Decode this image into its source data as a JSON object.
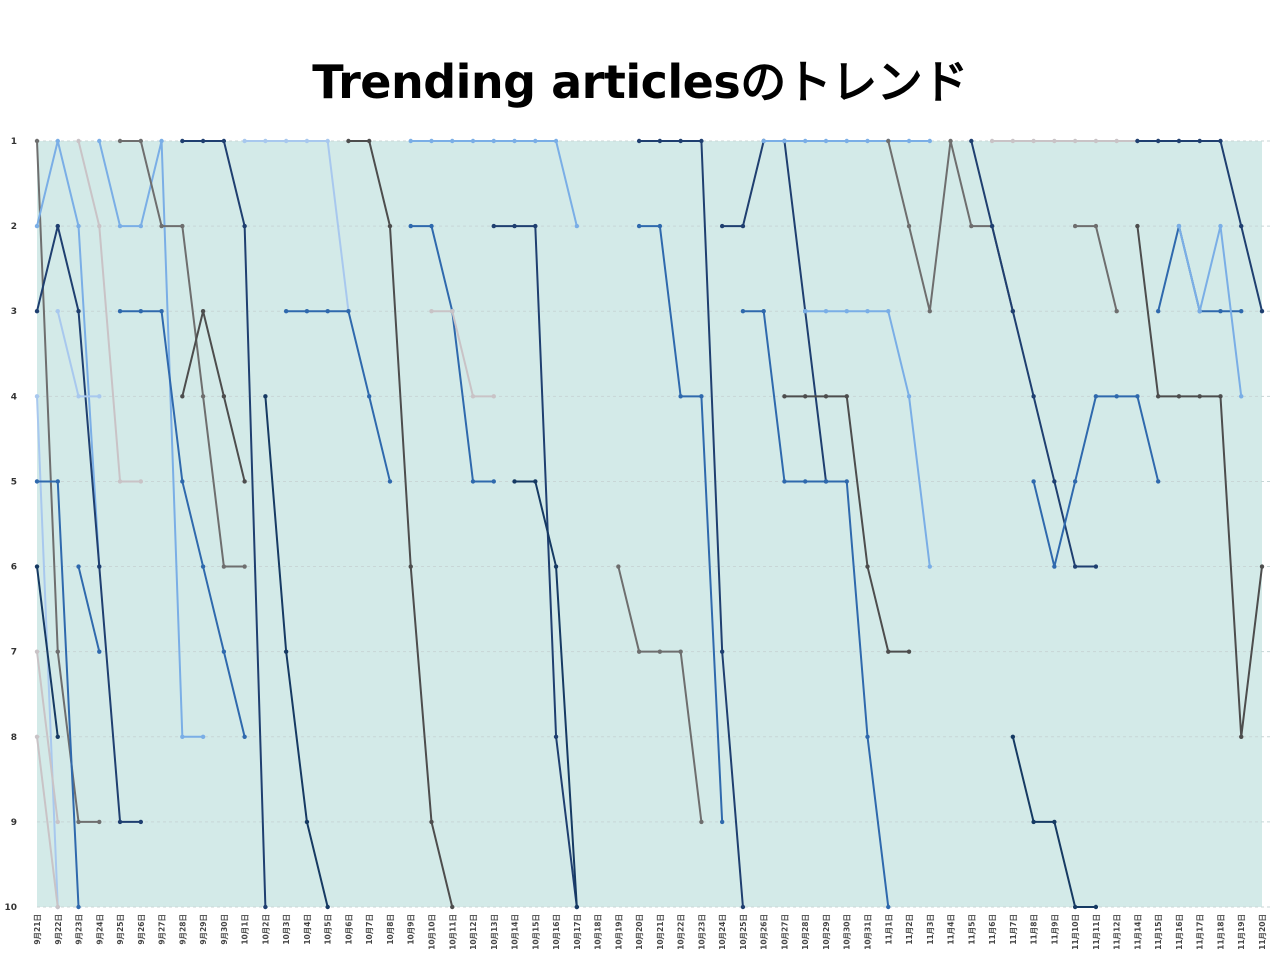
{
  "chart_data": {
    "type": "line",
    "title": "Trending articlesのトレンド",
    "xlabel": "",
    "ylabel": "",
    "y_inverted": true,
    "ylim": [
      1,
      10
    ],
    "yticks": [
      "1",
      "2",
      "3",
      "4",
      "5",
      "6",
      "7",
      "8",
      "9",
      "10"
    ],
    "grid": true,
    "legend": "none",
    "plot_background": "#d3eae8",
    "palette": [
      "#1f3f70",
      "#2f69ad",
      "#4a84c7",
      "#7aaee6",
      "#a8c8ee",
      "#9aa9bd",
      "#c9c3c6",
      "#6e6e6e",
      "#4d4d4d",
      "#163a63"
    ],
    "categories": [
      "9月21日",
      "9月22日",
      "9月23日",
      "9月24日",
      "9月25日",
      "9月26日",
      "9月27日",
      "9月28日",
      "9月29日",
      "9月30日",
      "10月1日",
      "10月2日",
      "10月3日",
      "10月4日",
      "10月5日",
      "10月6日",
      "10月7日",
      "10月8日",
      "10月9日",
      "10月10日",
      "10月11日",
      "10月12日",
      "10月13日",
      "10月14日",
      "10月15日",
      "10月16日",
      "10月17日",
      "10月18日",
      "10月19日",
      "10月20日",
      "10月21日",
      "10月22日",
      "10月23日",
      "10月24日",
      "10月25日",
      "10月26日",
      "10月27日",
      "10月28日",
      "10月29日",
      "10月30日",
      "10月31日",
      "11月1日",
      "11月2日",
      "11月3日",
      "11月4日",
      "11月5日",
      "11月6日",
      "11月7日",
      "11月8日",
      "11月9日",
      "11月10日",
      "11月11日",
      "11月12日",
      "11月14日",
      "11月15日",
      "11月16日",
      "11月17日",
      "11月18日",
      "11月19日",
      "11月20日"
    ],
    "series": [
      {
        "color": "#6e6e6e",
        "points": [
          [
            0,
            1
          ],
          [
            1,
            7
          ],
          [
            2,
            9
          ],
          [
            3,
            9
          ]
        ]
      },
      {
        "color": "#7aaee6",
        "points": [
          [
            0,
            2
          ],
          [
            1,
            1
          ],
          [
            2,
            2
          ],
          [
            3,
            6
          ]
        ]
      },
      {
        "color": "#1f3f70",
        "points": [
          [
            0,
            3
          ],
          [
            1,
            2
          ],
          [
            2,
            3
          ],
          [
            3,
            6
          ],
          [
            4,
            9
          ],
          [
            5,
            9
          ]
        ]
      },
      {
        "color": "#a8c8ee",
        "points": [
          [
            0,
            4
          ],
          [
            1,
            10
          ]
        ]
      },
      {
        "color": "#2f69ad",
        "points": [
          [
            0,
            5
          ],
          [
            1,
            5
          ],
          [
            2,
            10
          ]
        ]
      },
      {
        "color": "#163a63",
        "points": [
          [
            0,
            6
          ],
          [
            1,
            8
          ]
        ]
      },
      {
        "color": "#c9c3c6",
        "points": [
          [
            0,
            7
          ],
          [
            1,
            9
          ]
        ]
      },
      {
        "color": "#c9c3c6",
        "points": [
          [
            0,
            8
          ],
          [
            1,
            10
          ]
        ]
      },
      {
        "color": "#c9c3c6",
        "points": [
          [
            2,
            1
          ],
          [
            3,
            2
          ],
          [
            4,
            5
          ],
          [
            5,
            5
          ]
        ]
      },
      {
        "color": "#7aaee6",
        "points": [
          [
            3,
            1
          ],
          [
            4,
            2
          ],
          [
            5,
            2
          ],
          [
            6,
            1
          ],
          [
            7,
            8
          ],
          [
            8,
            8
          ]
        ]
      },
      {
        "color": "#a8c8ee",
        "points": [
          [
            1,
            3
          ],
          [
            2,
            4
          ],
          [
            3,
            4
          ]
        ]
      },
      {
        "color": "#2f69ad",
        "points": [
          [
            2,
            6
          ],
          [
            3,
            7
          ]
        ]
      },
      {
        "color": "#6e6e6e",
        "points": [
          [
            4,
            1
          ],
          [
            5,
            1
          ],
          [
            6,
            2
          ],
          [
            7,
            2
          ],
          [
            8,
            4
          ],
          [
            9,
            6
          ],
          [
            10,
            6
          ]
        ]
      },
      {
        "color": "#2f69ad",
        "points": [
          [
            4,
            3
          ],
          [
            5,
            3
          ],
          [
            6,
            3
          ],
          [
            7,
            5
          ],
          [
            8,
            6
          ],
          [
            9,
            7
          ],
          [
            10,
            8
          ]
        ]
      },
      {
        "color": "#1f3f70",
        "points": [
          [
            7,
            1
          ],
          [
            8,
            1
          ],
          [
            9,
            1
          ],
          [
            10,
            2
          ],
          [
            11,
            10
          ]
        ]
      },
      {
        "color": "#4d4d4d",
        "points": [
          [
            7,
            4
          ],
          [
            8,
            3
          ],
          [
            9,
            4
          ],
          [
            10,
            5
          ]
        ]
      },
      {
        "color": "#a8c8ee",
        "points": [
          [
            10,
            1
          ],
          [
            11,
            1
          ],
          [
            12,
            1
          ],
          [
            13,
            1
          ],
          [
            14,
            1
          ],
          [
            15,
            3
          ]
        ]
      },
      {
        "color": "#163a63",
        "points": [
          [
            11,
            4
          ],
          [
            12,
            7
          ],
          [
            13,
            9
          ],
          [
            14,
            10
          ]
        ]
      },
      {
        "color": "#2f69ad",
        "points": [
          [
            12,
            3
          ],
          [
            13,
            3
          ],
          [
            14,
            3
          ],
          [
            15,
            3
          ],
          [
            16,
            4
          ],
          [
            17,
            5
          ]
        ]
      },
      {
        "color": "#4d4d4d",
        "points": [
          [
            15,
            1
          ],
          [
            16,
            1
          ],
          [
            17,
            2
          ],
          [
            18,
            6
          ],
          [
            19,
            9
          ],
          [
            20,
            10
          ]
        ]
      },
      {
        "color": "#7aaee6",
        "points": [
          [
            18,
            1
          ],
          [
            19,
            1
          ],
          [
            20,
            1
          ],
          [
            21,
            1
          ],
          [
            22,
            1
          ],
          [
            23,
            1
          ],
          [
            24,
            1
          ],
          [
            25,
            1
          ],
          [
            26,
            2
          ]
        ]
      },
      {
        "color": "#2f69ad",
        "points": [
          [
            18,
            2
          ],
          [
            19,
            2
          ],
          [
            20,
            3
          ],
          [
            21,
            5
          ],
          [
            22,
            5
          ]
        ]
      },
      {
        "color": "#1f3f70",
        "points": [
          [
            22,
            2
          ],
          [
            23,
            2
          ],
          [
            24,
            2
          ],
          [
            25,
            8
          ],
          [
            26,
            10
          ]
        ]
      },
      {
        "color": "#c9c3c6",
        "points": [
          [
            19,
            3
          ],
          [
            20,
            3
          ],
          [
            21,
            4
          ],
          [
            22,
            4
          ]
        ]
      },
      {
        "color": "#163a63",
        "points": [
          [
            23,
            5
          ],
          [
            24,
            5
          ],
          [
            25,
            6
          ],
          [
            26,
            10
          ]
        ]
      },
      {
        "color": "#1f3f70",
        "points": [
          [
            29,
            1
          ],
          [
            30,
            1
          ],
          [
            31,
            1
          ],
          [
            32,
            1
          ],
          [
            33,
            7
          ],
          [
            34,
            10
          ]
        ]
      },
      {
        "color": "#2f69ad",
        "points": [
          [
            29,
            2
          ],
          [
            30,
            2
          ],
          [
            31,
            4
          ],
          [
            32,
            4
          ],
          [
            33,
            9
          ]
        ]
      },
      {
        "color": "#6e6e6e",
        "points": [
          [
            28,
            6
          ],
          [
            29,
            7
          ],
          [
            30,
            7
          ],
          [
            31,
            7
          ],
          [
            32,
            9
          ]
        ]
      },
      {
        "color": "#1f3f70",
        "points": [
          [
            33,
            2
          ],
          [
            34,
            2
          ],
          [
            35,
            1
          ],
          [
            36,
            1
          ],
          [
            37,
            3
          ],
          [
            38,
            5
          ]
        ]
      },
      {
        "color": "#7aaee6",
        "points": [
          [
            35,
            1
          ],
          [
            36,
            1
          ],
          [
            37,
            1
          ],
          [
            38,
            1
          ],
          [
            39,
            1
          ],
          [
            40,
            1
          ],
          [
            41,
            1
          ],
          [
            42,
            1
          ],
          [
            43,
            1
          ]
        ]
      },
      {
        "color": "#2f69ad",
        "points": [
          [
            34,
            3
          ],
          [
            35,
            3
          ],
          [
            36,
            5
          ],
          [
            37,
            5
          ],
          [
            38,
            5
          ],
          [
            39,
            5
          ],
          [
            40,
            8
          ],
          [
            41,
            10
          ]
        ]
      },
      {
        "color": "#4d4d4d",
        "points": [
          [
            36,
            4
          ],
          [
            37,
            4
          ],
          [
            38,
            4
          ],
          [
            39,
            4
          ],
          [
            40,
            6
          ],
          [
            41,
            7
          ],
          [
            42,
            7
          ]
        ]
      },
      {
        "color": "#7aaee6",
        "points": [
          [
            37,
            3
          ],
          [
            38,
            3
          ],
          [
            39,
            3
          ],
          [
            40,
            3
          ],
          [
            41,
            3
          ],
          [
            42,
            4
          ],
          [
            43,
            6
          ]
        ]
      },
      {
        "color": "#6e6e6e",
        "points": [
          [
            41,
            1
          ],
          [
            42,
            2
          ],
          [
            43,
            3
          ],
          [
            44,
            1
          ],
          [
            45,
            2
          ],
          [
            46,
            2
          ],
          [
            47,
            3
          ]
        ]
      },
      {
        "color": "#1f3f70",
        "points": [
          [
            45,
            1
          ],
          [
            46,
            2
          ],
          [
            47,
            3
          ],
          [
            48,
            4
          ],
          [
            49,
            5
          ],
          [
            50,
            6
          ],
          [
            51,
            6
          ]
        ]
      },
      {
        "color": "#c9c3c6",
        "points": [
          [
            46,
            1
          ],
          [
            47,
            1
          ],
          [
            48,
            1
          ],
          [
            49,
            1
          ],
          [
            50,
            1
          ],
          [
            51,
            1
          ],
          [
            52,
            1
          ],
          [
            53,
            1
          ],
          [
            54,
            1
          ],
          [
            55,
            1
          ]
        ]
      },
      {
        "color": "#2f69ad",
        "points": [
          [
            48,
            5
          ],
          [
            49,
            6
          ],
          [
            50,
            5
          ],
          [
            51,
            4
          ],
          [
            52,
            4
          ],
          [
            53,
            4
          ],
          [
            54,
            5
          ]
        ]
      },
      {
        "color": "#163a63",
        "points": [
          [
            47,
            8
          ],
          [
            48,
            9
          ],
          [
            49,
            9
          ],
          [
            50,
            10
          ],
          [
            51,
            10
          ]
        ]
      },
      {
        "color": "#6e6e6e",
        "points": [
          [
            50,
            2
          ],
          [
            51,
            2
          ],
          [
            52,
            3
          ]
        ]
      },
      {
        "color": "#1f3f70",
        "points": [
          [
            53,
            1
          ],
          [
            54,
            1
          ],
          [
            55,
            1
          ],
          [
            56,
            1
          ],
          [
            57,
            1
          ],
          [
            58,
            2
          ],
          [
            59,
            3
          ]
        ]
      },
      {
        "color": "#4d4d4d",
        "points": [
          [
            53,
            2
          ],
          [
            54,
            4
          ],
          [
            55,
            4
          ],
          [
            56,
            4
          ],
          [
            57,
            4
          ],
          [
            58,
            8
          ],
          [
            59,
            6
          ]
        ]
      },
      {
        "color": "#2f69ad",
        "points": [
          [
            54,
            3
          ],
          [
            55,
            2
          ],
          [
            56,
            3
          ],
          [
            57,
            3
          ],
          [
            58,
            3
          ]
        ]
      },
      {
        "color": "#7aaee6",
        "points": [
          [
            55,
            2
          ],
          [
            56,
            3
          ],
          [
            57,
            2
          ],
          [
            58,
            4
          ]
        ]
      }
    ]
  }
}
